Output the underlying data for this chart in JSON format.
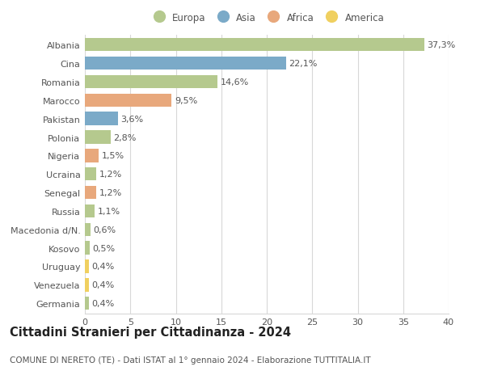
{
  "categories": [
    "Albania",
    "Cina",
    "Romania",
    "Marocco",
    "Pakistan",
    "Polonia",
    "Nigeria",
    "Ucraina",
    "Senegal",
    "Russia",
    "Macedonia d/N.",
    "Kosovo",
    "Uruguay",
    "Venezuela",
    "Germania"
  ],
  "values": [
    37.3,
    22.1,
    14.6,
    9.5,
    3.6,
    2.8,
    1.5,
    1.2,
    1.2,
    1.1,
    0.6,
    0.5,
    0.4,
    0.4,
    0.4
  ],
  "labels": [
    "37,3%",
    "22,1%",
    "14,6%",
    "9,5%",
    "3,6%",
    "2,8%",
    "1,5%",
    "1,2%",
    "1,2%",
    "1,1%",
    "0,6%",
    "0,5%",
    "0,4%",
    "0,4%",
    "0,4%"
  ],
  "continents": [
    "Europa",
    "Asia",
    "Europa",
    "Africa",
    "Asia",
    "Europa",
    "Africa",
    "Europa",
    "Africa",
    "Europa",
    "Europa",
    "Europa",
    "America",
    "America",
    "Europa"
  ],
  "continent_colors": {
    "Europa": "#b5c98e",
    "Asia": "#7baac8",
    "Africa": "#e8a87c",
    "America": "#f0d060"
  },
  "legend_order": [
    "Europa",
    "Asia",
    "Africa",
    "America"
  ],
  "title": "Cittadini Stranieri per Cittadinanza - 2024",
  "subtitle": "COMUNE DI NERETO (TE) - Dati ISTAT al 1° gennaio 2024 - Elaborazione TUTTITALIA.IT",
  "xlim": [
    0,
    40
  ],
  "xticks": [
    0,
    5,
    10,
    15,
    20,
    25,
    30,
    35,
    40
  ],
  "background_color": "#ffffff",
  "grid_color": "#d8d8d8",
  "bar_height": 0.72,
  "label_fontsize": 8.0,
  "tick_fontsize": 8.0,
  "title_fontsize": 10.5,
  "subtitle_fontsize": 7.5,
  "legend_fontsize": 8.5
}
